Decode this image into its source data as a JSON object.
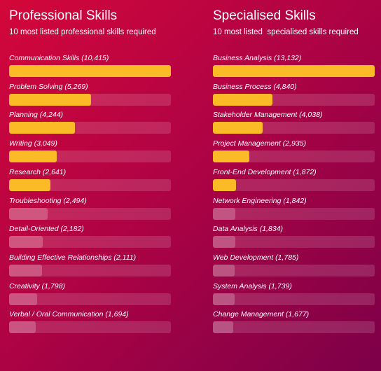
{
  "chart_data": [
    {
      "type": "bar",
      "title": "Professional Skills",
      "subtitle": "10 most listed professional skills required",
      "orientation": "horizontal",
      "highlight_color": "#fbbb27",
      "muted_color": "#ffffff38",
      "highlighted_count": 5,
      "xlim": [
        0,
        10415
      ],
      "categories": [
        "Communication Skills",
        "Problem Solving",
        "Planning",
        "Writing",
        "Research",
        "Troubleshooting",
        "Detail-Oriented",
        "Building Effective Relationships",
        "Creativity",
        "Verbal / Oral Communication"
      ],
      "values": [
        10415,
        5269,
        4244,
        3049,
        2641,
        2494,
        2182,
        2111,
        1798,
        1694
      ],
      "labels": [
        "Communication Skills (10,415)",
        "Problem Solving (5,269)",
        "Planning (4,244)",
        "Writing (3,049)",
        "Research (2,641)",
        "Troubleshooting (2,494)",
        "Detail-Oriented (2,182)",
        "Building Effective Relationships (2,111)",
        "Creativity (1,798)",
        "Verbal / Oral Communication (1,694)"
      ]
    },
    {
      "type": "bar",
      "title": "Specialised Skills",
      "subtitle": "10 most listed  specialised skills required",
      "orientation": "horizontal",
      "highlight_color": "#fbbb27",
      "muted_color": "#ffffff38",
      "highlighted_count": 5,
      "xlim": [
        0,
        13132
      ],
      "categories": [
        "Business Analysis",
        "Business Process",
        "Stakeholder Management",
        "Project Management",
        "Front-End Development",
        "Network Engineering",
        "Data Analysis",
        "Web Development",
        "System Analysis",
        "Change Management"
      ],
      "values": [
        13132,
        4840,
        4038,
        2935,
        1872,
        1842,
        1834,
        1785,
        1739,
        1677
      ],
      "labels": [
        "Business Analysis (13,132)",
        "Business Process (4,840)",
        "Stakeholder Management (4,038)",
        "Project Management (2,935)",
        "Front-End Development (1,872)",
        "Network Engineering (1,842)",
        "Data Analysis (1,834)",
        "Web Development (1,785)",
        "System Analysis (1,739)",
        "Change Management (1,677)"
      ]
    }
  ]
}
